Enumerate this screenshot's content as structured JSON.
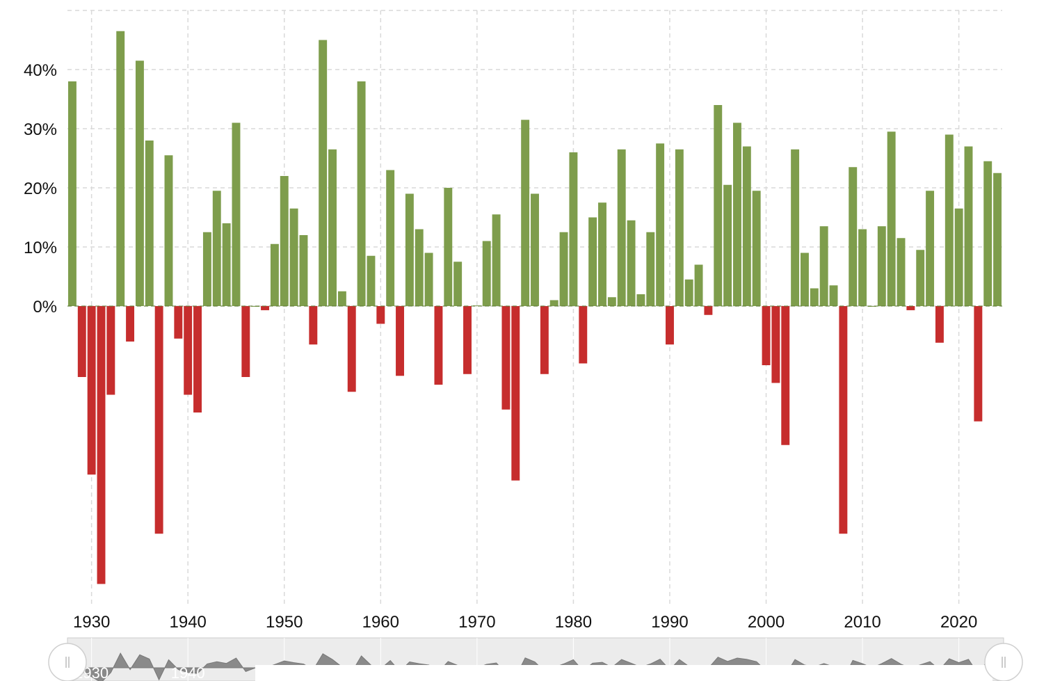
{
  "chart_data": {
    "type": "bar",
    "title": "",
    "xlabel": "",
    "ylabel": "",
    "x": [
      1928,
      1929,
      1930,
      1931,
      1932,
      1933,
      1934,
      1935,
      1936,
      1937,
      1938,
      1939,
      1940,
      1941,
      1942,
      1943,
      1944,
      1945,
      1946,
      1947,
      1948,
      1949,
      1950,
      1951,
      1952,
      1953,
      1954,
      1955,
      1956,
      1957,
      1958,
      1959,
      1960,
      1961,
      1962,
      1963,
      1964,
      1965,
      1966,
      1967,
      1968,
      1969,
      1970,
      1971,
      1972,
      1973,
      1974,
      1975,
      1976,
      1977,
      1978,
      1979,
      1980,
      1981,
      1982,
      1983,
      1984,
      1985,
      1986,
      1987,
      1988,
      1989,
      1990,
      1991,
      1992,
      1993,
      1994,
      1995,
      1996,
      1997,
      1998,
      1999,
      2000,
      2001,
      2002,
      2003,
      2004,
      2005,
      2006,
      2007,
      2008,
      2009,
      2010,
      2011,
      2012,
      2013,
      2014,
      2015,
      2016,
      2017,
      2018,
      2019,
      2020,
      2021,
      2022,
      2023,
      2024
    ],
    "values": [
      38.0,
      -12.0,
      -28.5,
      -47.0,
      -15.0,
      46.5,
      -6.0,
      41.5,
      28.0,
      -38.5,
      25.5,
      -5.5,
      -15.0,
      -18.0,
      12.5,
      19.5,
      14.0,
      31.0,
      -12.0,
      0.0,
      -0.7,
      10.5,
      22.0,
      16.5,
      12.0,
      -6.5,
      45.0,
      26.5,
      2.5,
      -14.5,
      38.0,
      8.5,
      -3.0,
      23.0,
      -11.8,
      19.0,
      13.0,
      9.0,
      -13.3,
      20.0,
      7.5,
      -11.5,
      0.1,
      11.0,
      15.5,
      -17.5,
      -29.5,
      31.5,
      19.0,
      -11.5,
      1.0,
      12.5,
      26.0,
      -9.7,
      15.0,
      17.5,
      1.5,
      26.5,
      14.5,
      2.0,
      12.5,
      27.5,
      -6.5,
      26.5,
      4.5,
      7.0,
      -1.5,
      34.0,
      20.5,
      31.0,
      27.0,
      19.5,
      -10.0,
      -13.0,
      -23.5,
      26.5,
      9.0,
      3.0,
      13.5,
      3.5,
      -38.5,
      23.5,
      13.0,
      0.0,
      13.5,
      29.5,
      11.5,
      -0.7,
      9.5,
      19.5,
      -6.2,
      29.0,
      16.5,
      27.0,
      -19.5,
      24.5,
      22.5
    ],
    "ylim": [
      -48,
      50
    ],
    "yticks": [
      {
        "value": 0,
        "label": "0%"
      },
      {
        "value": 10,
        "label": "10%"
      },
      {
        "value": 20,
        "label": "20%"
      },
      {
        "value": 30,
        "label": "30%"
      },
      {
        "value": 40,
        "label": "40%"
      }
    ],
    "xticks": [
      {
        "value": 1930,
        "label": "1930"
      },
      {
        "value": 1940,
        "label": "1940"
      },
      {
        "value": 1950,
        "label": "1950"
      },
      {
        "value": 1960,
        "label": "1960"
      },
      {
        "value": 1970,
        "label": "1970"
      },
      {
        "value": 1980,
        "label": "1980"
      },
      {
        "value": 1990,
        "label": "1990"
      },
      {
        "value": 2000,
        "label": "2000"
      },
      {
        "value": 2010,
        "label": "2010"
      },
      {
        "value": 2020,
        "label": "2020"
      }
    ],
    "grid": true,
    "grid_style": "dashed",
    "colors": {
      "positive": "#7e9d4c",
      "negative": "#c62d2d",
      "grid": "#d9d9d9",
      "navigator_bg": "#ececec",
      "navigator_area": "#8a8a8a"
    },
    "navigator": {
      "labels": [
        {
          "value": 1930,
          "label": "1930"
        },
        {
          "value": 1940,
          "label": "1940"
        }
      ],
      "handles": [
        "left-handle",
        "right-handle"
      ]
    }
  }
}
